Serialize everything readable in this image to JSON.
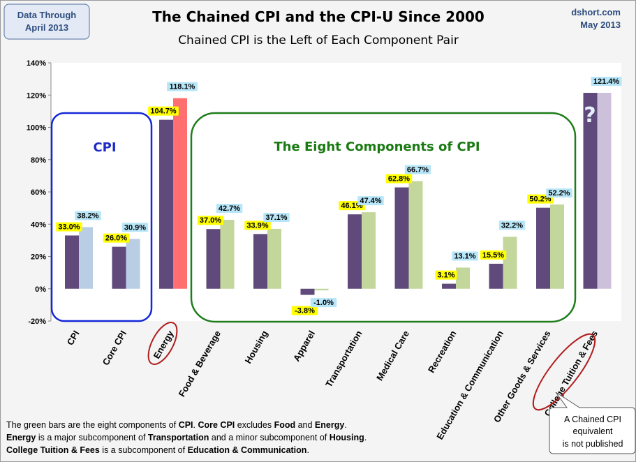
{
  "header": {
    "title": "The Chained CPI and the CPI-U Since 2000",
    "subtitle": "Chained CPI is the Left of Each Component Pair",
    "left_box": [
      "Data Through",
      "April 2013"
    ],
    "right_line1": "dshort.com",
    "right_line2": "May 2013"
  },
  "groups": {
    "cpi_label": "CPI",
    "components_label": "The Eight Components of CPI",
    "question_mark": "?"
  },
  "callout": [
    "A Chained CPI",
    "equivalent",
    "is not published"
  ],
  "footnote": [
    [
      {
        "t": "The green bars are the eight components of ",
        "b": false
      },
      {
        "t": "CPI",
        "b": true
      },
      {
        "t": ". ",
        "b": false
      },
      {
        "t": "Core CPI",
        "b": true
      },
      {
        "t": " excludes ",
        "b": false
      },
      {
        "t": "Food",
        "b": true
      },
      {
        "t": " and ",
        "b": false
      },
      {
        "t": "Energy",
        "b": true
      },
      {
        "t": ".",
        "b": false
      }
    ],
    [
      {
        "t": "Energy",
        "b": true
      },
      {
        "t": " is a  major subcomponent of ",
        "b": false
      },
      {
        "t": "Transportation",
        "b": true
      },
      {
        "t": " and a minor subcomponent of ",
        "b": false
      },
      {
        "t": "Housing",
        "b": true
      },
      {
        "t": ".",
        "b": false
      }
    ],
    [
      {
        "t": "College Tuition & Fees",
        "b": true
      },
      {
        "t": " is a subcomponent of ",
        "b": false
      },
      {
        "t": "Education & Communication",
        "b": true
      },
      {
        "t": ".",
        "b": false
      }
    ]
  ],
  "chart_data": {
    "type": "bar",
    "title": "The Chained CPI and the CPI-U Since 2000",
    "subtitle": "Chained CPI is the Left of Each Component Pair",
    "ylim": [
      -20,
      140
    ],
    "yticks": [
      -20,
      0,
      20,
      40,
      60,
      80,
      100,
      120,
      140
    ],
    "ytick_labels": [
      "-20%",
      "0%",
      "20%",
      "40%",
      "60%",
      "80%",
      "100%",
      "120%",
      "140%"
    ],
    "grid": false,
    "categories": [
      "CPI",
      "Core CPI",
      "Energy",
      "Food & Beverage",
      "Housing",
      "Apparel",
      "Transportation",
      "Medical Care",
      "Recreation",
      "Education & Communication",
      "Other Goods & Services",
      "College Tuition & Fees"
    ],
    "series": [
      {
        "values": [
          33.0,
          26.0,
          104.7,
          37.0,
          33.9,
          -3.8,
          46.1,
          62.8,
          3.1,
          15.5,
          50.2,
          121.4
        ],
        "labels": [
          "33.0%",
          "26.0%",
          "104.7%",
          "37.0%",
          "33.9%",
          "-3.8%",
          "46.1%",
          "62.8%",
          "3.1%",
          "15.5%",
          "50.2%",
          ""
        ],
        "color": "#604a7b",
        "label_bg": "#ffff00"
      },
      {
        "values": [
          38.2,
          30.9,
          118.1,
          42.7,
          37.1,
          -1.0,
          47.4,
          66.7,
          13.1,
          32.2,
          52.2,
          121.4
        ],
        "labels": [
          "38.2%",
          "30.9%",
          "118.1%",
          "42.7%",
          "37.1%",
          "-1.0%",
          "47.4%",
          "66.7%",
          "13.1%",
          "32.2%",
          "52.2%",
          "121.4%"
        ],
        "colors": [
          "#b9cde5",
          "#b9cde5",
          "#ff6f6f",
          "#c3d69b",
          "#c3d69b",
          "#c3d69b",
          "#c3d69b",
          "#c3d69b",
          "#c3d69b",
          "#c3d69b",
          "#c3d69b",
          "#ccc0da"
        ],
        "label_bg": "#b7e6f8"
      }
    ]
  }
}
